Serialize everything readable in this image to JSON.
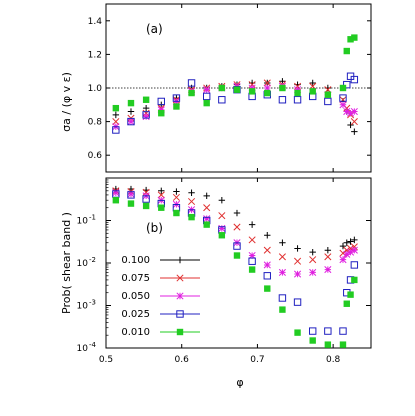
{
  "chart_data": [
    {
      "type": "scatter",
      "panel_label": "(a)",
      "ylabel": "σa / (φ v ε)",
      "xlim": [
        0.5,
        0.85
      ],
      "ylim": [
        0.5,
        1.5
      ],
      "yticks": [
        "0.6",
        "0.8",
        "1.0",
        "1.2",
        "1.4"
      ],
      "ytick_values": [
        0.6,
        0.8,
        1.0,
        1.2,
        1.4
      ],
      "reference_line": 1.0,
      "log_y": false,
      "series": [
        {
          "name": "0.100",
          "color": "#000000",
          "marker": "plus",
          "x": [
            0.513,
            0.533,
            0.553,
            0.573,
            0.593,
            0.613,
            0.633,
            0.653,
            0.673,
            0.693,
            0.713,
            0.733,
            0.753,
            0.773,
            0.793,
            0.813,
            0.818,
            0.823,
            0.828
          ],
          "y": [
            0.84,
            0.86,
            0.88,
            0.9,
            0.94,
            1.0,
            1.0,
            1.01,
            1.02,
            1.03,
            1.03,
            1.04,
            1.02,
            1.03,
            1.0,
            0.92,
            0.86,
            0.78,
            0.74
          ]
        },
        {
          "name": "0.075",
          "color": "#e03030",
          "marker": "x",
          "x": [
            0.513,
            0.533,
            0.553,
            0.573,
            0.593,
            0.613,
            0.633,
            0.653,
            0.673,
            0.693,
            0.713,
            0.733,
            0.753,
            0.773,
            0.793,
            0.813,
            0.818,
            0.823,
            0.828
          ],
          "y": [
            0.8,
            0.82,
            0.85,
            0.88,
            0.93,
            0.99,
            1.0,
            1.01,
            1.02,
            1.02,
            1.03,
            1.02,
            1.01,
            1.01,
            0.99,
            0.93,
            0.88,
            0.84,
            0.8
          ]
        },
        {
          "name": "0.050",
          "color": "#e020e0",
          "marker": "star",
          "x": [
            0.513,
            0.533,
            0.553,
            0.573,
            0.593,
            0.613,
            0.633,
            0.653,
            0.673,
            0.693,
            0.713,
            0.733,
            0.753,
            0.773,
            0.793,
            0.813,
            0.818,
            0.823,
            0.828
          ],
          "y": [
            0.77,
            0.8,
            0.83,
            0.87,
            0.92,
            0.98,
            0.99,
            1.0,
            1.01,
            1.0,
            1.0,
            1.01,
            0.99,
            0.98,
            0.96,
            0.9,
            0.86,
            0.85,
            0.86
          ]
        },
        {
          "name": "0.025",
          "color": "#2020c0",
          "marker": "square-open",
          "x": [
            0.513,
            0.533,
            0.553,
            0.573,
            0.593,
            0.613,
            0.633,
            0.653,
            0.673,
            0.693,
            0.713,
            0.733,
            0.753,
            0.773,
            0.793,
            0.813,
            0.818,
            0.823,
            0.828
          ],
          "y": [
            0.75,
            0.8,
            0.84,
            0.92,
            0.94,
            1.03,
            0.95,
            0.93,
            0.99,
            0.95,
            0.96,
            0.93,
            0.93,
            0.95,
            0.92,
            0.94,
            1.02,
            1.07,
            1.05
          ]
        },
        {
          "name": "0.010",
          "color": "#22cc22",
          "marker": "square-filled",
          "x": [
            0.513,
            0.533,
            0.553,
            0.573,
            0.593,
            0.613,
            0.633,
            0.653,
            0.673,
            0.693,
            0.713,
            0.733,
            0.753,
            0.773,
            0.793,
            0.813,
            0.818,
            0.823,
            0.828
          ],
          "y": [
            0.88,
            0.91,
            0.93,
            0.85,
            0.89,
            0.97,
            0.91,
            1.0,
            0.99,
            0.98,
            0.97,
            1.0,
            0.97,
            0.98,
            0.96,
            1.0,
            1.22,
            1.29,
            1.3
          ]
        }
      ]
    },
    {
      "type": "scatter",
      "panel_label": "(b)",
      "ylabel": "Prob( shear band )",
      "xlabel": "φ",
      "xlim": [
        0.5,
        0.85
      ],
      "xticks": [
        "0.5",
        "0.6",
        "0.7",
        "0.8"
      ],
      "xtick_values": [
        0.5,
        0.6,
        0.7,
        0.8
      ],
      "ylim": [
        0.0001,
        1
      ],
      "log_y": true,
      "yticks": [
        "10-1",
        "10-2",
        "10-3",
        "10-4"
      ],
      "ytick_values": [
        0.1,
        0.01,
        0.001,
        0.0001
      ],
      "legend_position": "bottom-left",
      "series": [
        {
          "name": "0.100",
          "color": "#000000",
          "marker": "plus",
          "x": [
            0.513,
            0.533,
            0.553,
            0.573,
            0.593,
            0.613,
            0.633,
            0.653,
            0.673,
            0.693,
            0.713,
            0.733,
            0.753,
            0.773,
            0.793,
            0.813,
            0.818,
            0.823,
            0.828
          ],
          "y": [
            0.55,
            0.55,
            0.52,
            0.5,
            0.48,
            0.45,
            0.38,
            0.3,
            0.15,
            0.08,
            0.045,
            0.03,
            0.022,
            0.018,
            0.02,
            0.025,
            0.03,
            0.032,
            0.035
          ]
        },
        {
          "name": "0.075",
          "color": "#e03030",
          "marker": "x",
          "x": [
            0.513,
            0.533,
            0.553,
            0.573,
            0.593,
            0.613,
            0.633,
            0.653,
            0.673,
            0.693,
            0.713,
            0.733,
            0.753,
            0.773,
            0.793,
            0.813,
            0.818,
            0.823,
            0.828
          ],
          "y": [
            0.5,
            0.48,
            0.46,
            0.4,
            0.35,
            0.28,
            0.2,
            0.13,
            0.07,
            0.035,
            0.02,
            0.014,
            0.011,
            0.012,
            0.014,
            0.017,
            0.02,
            0.022,
            0.024
          ]
        },
        {
          "name": "0.050",
          "color": "#e020e0",
          "marker": "star",
          "x": [
            0.513,
            0.533,
            0.553,
            0.573,
            0.593,
            0.613,
            0.633,
            0.653,
            0.673,
            0.693,
            0.713,
            0.733,
            0.753,
            0.773,
            0.793,
            0.813,
            0.818,
            0.823,
            0.828
          ],
          "y": [
            0.45,
            0.42,
            0.38,
            0.3,
            0.24,
            0.18,
            0.11,
            0.065,
            0.03,
            0.015,
            0.009,
            0.006,
            0.0055,
            0.006,
            0.007,
            0.012,
            0.016,
            0.018,
            0.02
          ]
        },
        {
          "name": "0.025",
          "color": "#2020c0",
          "marker": "square-open",
          "x": [
            0.513,
            0.533,
            0.553,
            0.573,
            0.593,
            0.613,
            0.633,
            0.653,
            0.673,
            0.693,
            0.713,
            0.733,
            0.753,
            0.773,
            0.793,
            0.813,
            0.818,
            0.823,
            0.828
          ],
          "y": [
            0.42,
            0.4,
            0.32,
            0.25,
            0.2,
            0.15,
            0.1,
            0.06,
            0.025,
            0.011,
            0.005,
            0.0015,
            0.0012,
            0.00025,
            0.00025,
            0.00025,
            0.002,
            0.004,
            0.009
          ]
        },
        {
          "name": "0.010",
          "color": "#22cc22",
          "marker": "square-filled",
          "x": [
            0.513,
            0.533,
            0.553,
            0.573,
            0.593,
            0.613,
            0.633,
            0.653,
            0.673,
            0.693,
            0.713,
            0.733,
            0.753,
            0.773,
            0.793,
            0.813,
            0.818,
            0.823,
            0.828
          ],
          "y": [
            0.3,
            0.25,
            0.22,
            0.2,
            0.15,
            0.12,
            0.08,
            0.045,
            0.015,
            0.007,
            0.0025,
            0.0008,
            0.00023,
            0.00015,
            0.00012,
            0.00012,
            0.0011,
            0.0018,
            0.004
          ]
        }
      ]
    }
  ]
}
